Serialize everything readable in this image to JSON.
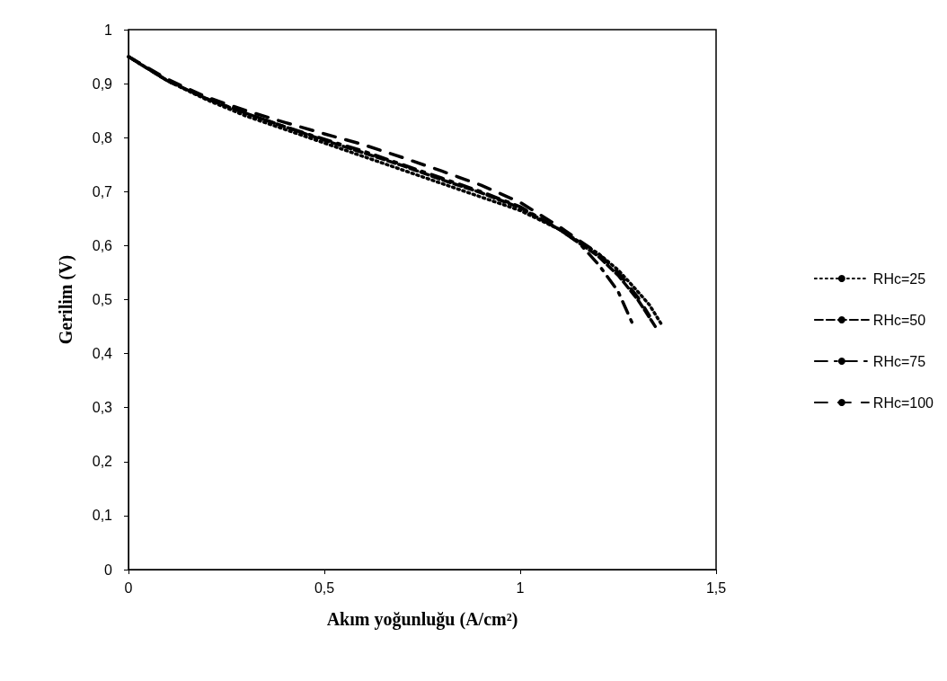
{
  "chart_data": {
    "type": "line",
    "xlabel": "Akım yoğunluğu (A/cm²)",
    "ylabel": "Gerilim (V)",
    "xlim": [
      0,
      1.5
    ],
    "xticks": [
      0,
      {
        "value": 0.5,
        "label": "0,5"
      },
      1,
      {
        "value": 1.5,
        "label": "1,5"
      }
    ],
    "ylim": [
      0,
      1
    ],
    "yticks": [
      0,
      {
        "value": 0.1,
        "label": "0,1"
      },
      {
        "value": 0.2,
        "label": "0,2"
      },
      {
        "value": 0.3,
        "label": "0,3"
      },
      {
        "value": 0.4,
        "label": "0,4"
      },
      {
        "value": 0.5,
        "label": "0,5"
      },
      {
        "value": 0.6,
        "label": "0,6"
      },
      {
        "value": 0.7,
        "label": "0,7"
      },
      {
        "value": 0.8,
        "label": "0,8"
      },
      {
        "value": 0.9,
        "label": "0,9"
      },
      1
    ],
    "grid": false,
    "legend": "right",
    "marker": "none",
    "series": [
      {
        "name": "RHc=25",
        "color": "#000000",
        "line_style": "dotted",
        "x": [
          0,
          0.1,
          0.2,
          0.3,
          0.4,
          0.5,
          0.6,
          0.7,
          0.8,
          0.9,
          1.0,
          1.1,
          1.2,
          1.25,
          1.3,
          1.33,
          1.36
        ],
        "values": [
          0.95,
          0.905,
          0.87,
          0.84,
          0.815,
          0.79,
          0.765,
          0.74,
          0.715,
          0.69,
          0.665,
          0.63,
          0.585,
          0.555,
          0.515,
          0.49,
          0.455
        ]
      },
      {
        "name": "RHc=50",
        "color": "#000000",
        "line_style": "dashed",
        "x": [
          0,
          0.1,
          0.2,
          0.3,
          0.4,
          0.5,
          0.6,
          0.7,
          0.8,
          0.9,
          1.0,
          1.1,
          1.2,
          1.25,
          1.3,
          1.345
        ],
        "values": [
          0.95,
          0.905,
          0.872,
          0.845,
          0.82,
          0.795,
          0.772,
          0.748,
          0.722,
          0.698,
          0.67,
          0.63,
          0.58,
          0.545,
          0.5,
          0.45
        ]
      },
      {
        "name": "RHc=75",
        "color": "#000000",
        "line_style": "dashdot",
        "x": [
          0,
          0.1,
          0.2,
          0.3,
          0.4,
          0.5,
          0.6,
          0.7,
          0.8,
          0.9,
          1.0,
          1.1,
          1.15,
          1.2,
          1.25,
          1.29
        ],
        "values": [
          0.95,
          0.905,
          0.872,
          0.845,
          0.82,
          0.797,
          0.775,
          0.75,
          0.725,
          0.7,
          0.672,
          0.63,
          0.605,
          0.565,
          0.515,
          0.45
        ]
      },
      {
        "name": "RHc=100",
        "color": "#000000",
        "line_style": "longdash",
        "x": [
          0,
          0.1,
          0.2,
          0.3,
          0.4,
          0.5,
          0.6,
          0.7,
          0.8,
          0.9,
          1.0,
          1.1,
          1.2,
          1.25,
          1.3,
          1.33
        ],
        "values": [
          0.95,
          0.908,
          0.875,
          0.85,
          0.828,
          0.807,
          0.787,
          0.763,
          0.738,
          0.712,
          0.68,
          0.635,
          0.585,
          0.55,
          0.505,
          0.47
        ]
      }
    ]
  }
}
